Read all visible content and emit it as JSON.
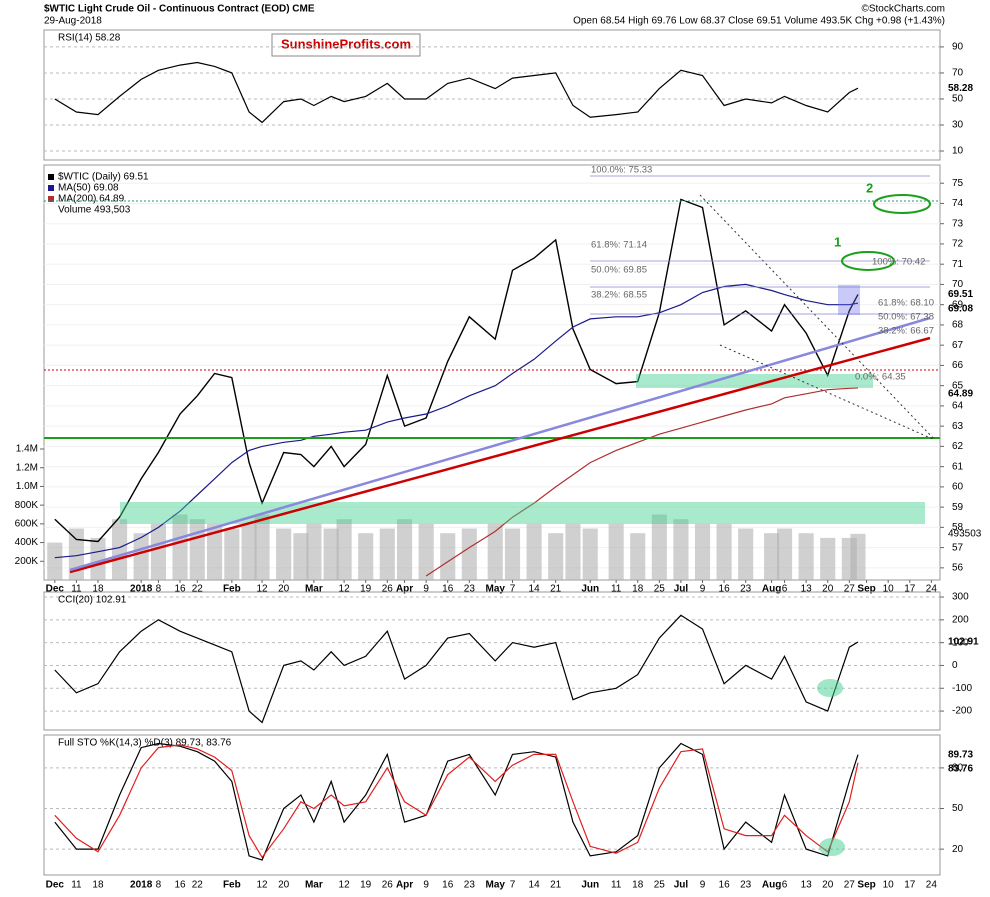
{
  "header": {
    "title": "$WTIC Light Crude Oil - Continuous Contract (EOD) CME",
    "date": "29-Aug-2018",
    "quote": "Open 68.54 High 69.76 Low 68.37 Close 69.51 Volume 493.5K Chg +0.98 (+1.43%)",
    "credit": "©StockCharts.com",
    "brand": "SunshineProfits.com"
  },
  "annotations": [
    "100.0%: 75.33",
    "61.8%: 71.14",
    "50.0%: 69.85",
    "38.2%: 68.55",
    "61.8%: 68.10",
    "50.0%: 67.38",
    "38.2%: 66.67",
    "100%: 70.42",
    "0.0%: 64.35",
    "2",
    "1"
  ],
  "chart_data": [
    {
      "type": "line",
      "title": "RSI(14) 58.28",
      "xlim": [
        -2.5,
        205
      ],
      "ylim": [
        3.1,
        103
      ],
      "yticks": [
        10,
        30,
        50,
        70,
        90
      ],
      "x": [
        0,
        5,
        10,
        15,
        20,
        24,
        29,
        33,
        37,
        41,
        45,
        48,
        53,
        57,
        60,
        64,
        67,
        72,
        77,
        81,
        86,
        91,
        96,
        102,
        106,
        111,
        116,
        120,
        124,
        130,
        135,
        140,
        145,
        150,
        155,
        160,
        166,
        169,
        174,
        179,
        184,
        186
      ],
      "series": [
        {
          "color": "#000000",
          "values": [
            50,
            40,
            38,
            52,
            65,
            72,
            76,
            78,
            75,
            70,
            40,
            32,
            48,
            50,
            45,
            52,
            48,
            52,
            62,
            50,
            50,
            62,
            66,
            58,
            66,
            68,
            70,
            45,
            36,
            38,
            40,
            58,
            72,
            68,
            45,
            50,
            47,
            52,
            45,
            40,
            55,
            58.28
          ]
        }
      ]
    },
    {
      "type": "line",
      "xlim": [
        -2.5,
        205
      ],
      "ylim": [
        55.4,
        75.9
      ],
      "yticks": [
        56,
        57,
        58,
        59,
        60,
        61,
        62,
        63,
        64,
        65,
        66,
        67,
        68,
        69,
        70,
        71,
        72,
        73,
        74,
        75
      ],
      "xticks": [
        {
          "value": 0,
          "label": "Dec"
        },
        {
          "value": 5,
          "label": "11"
        },
        {
          "value": 10,
          "label": "18"
        },
        {
          "value": 20,
          "label": "2018"
        },
        {
          "value": 24,
          "label": "8"
        },
        {
          "value": 29,
          "label": "16"
        },
        {
          "value": 33,
          "label": "22"
        },
        {
          "value": 41,
          "label": "Feb"
        },
        {
          "value": 48,
          "label": "12"
        },
        {
          "value": 53,
          "label": "20"
        },
        {
          "value": 60,
          "label": "Mar"
        },
        {
          "value": 67,
          "label": "12"
        },
        {
          "value": 72,
          "label": "19"
        },
        {
          "value": 77,
          "label": "26"
        },
        {
          "value": 81,
          "label": "Apr"
        },
        {
          "value": 86,
          "label": "9"
        },
        {
          "value": 91,
          "label": "16"
        },
        {
          "value": 96,
          "label": "23"
        },
        {
          "value": 102,
          "label": "May"
        },
        {
          "value": 106,
          "label": "7"
        },
        {
          "value": 111,
          "label": "14"
        },
        {
          "value": 116,
          "label": "21"
        },
        {
          "value": 124,
          "label": "Jun"
        },
        {
          "value": 130,
          "label": "11"
        },
        {
          "value": 135,
          "label": "18"
        },
        {
          "value": 140,
          "label": "25"
        },
        {
          "value": 145,
          "label": "Jul"
        },
        {
          "value": 150,
          "label": "9"
        },
        {
          "value": 155,
          "label": "16"
        },
        {
          "value": 160,
          "label": "23"
        },
        {
          "value": 166,
          "label": "Aug"
        },
        {
          "value": 169,
          "label": "6"
        },
        {
          "value": 174,
          "label": "13"
        },
        {
          "value": 179,
          "label": "20"
        },
        {
          "value": 184,
          "label": "27"
        },
        {
          "value": 188,
          "label": "Sep"
        },
        {
          "value": 193,
          "label": "10"
        },
        {
          "value": 198,
          "label": "17"
        },
        {
          "value": 203,
          "label": "24"
        }
      ],
      "x": [
        0,
        5,
        10,
        15,
        20,
        24,
        29,
        33,
        37,
        41,
        45,
        48,
        53,
        57,
        60,
        64,
        67,
        72,
        77,
        81,
        86,
        91,
        96,
        102,
        106,
        111,
        116,
        120,
        124,
        130,
        135,
        140,
        145,
        150,
        155,
        160,
        166,
        169,
        174,
        179,
        184,
        186
      ],
      "series": [
        {
          "name": "$WTIC (Daily) 69.51",
          "color": "#000000",
          "values": [
            58.4,
            57.4,
            57.3,
            58.5,
            60.4,
            61.7,
            63.6,
            64.5,
            65.6,
            65.4,
            61.2,
            59.2,
            61.7,
            61.6,
            61.0,
            62.0,
            61.0,
            62.1,
            65.5,
            63.0,
            63.4,
            66.2,
            68.4,
            67.3,
            70.7,
            71.3,
            72.2,
            67.8,
            65.8,
            65.1,
            65.2,
            68.6,
            74.2,
            73.8,
            68.0,
            68.7,
            67.7,
            69.0,
            67.6,
            65.5,
            68.7,
            69.51
          ]
        },
        {
          "name": "MA(50) 69.08",
          "color": "#1a1a8c",
          "values": [
            56.5,
            56.6,
            56.8,
            57.0,
            57.5,
            58.0,
            58.8,
            59.6,
            60.4,
            61.2,
            61.8,
            62.0,
            62.2,
            62.3,
            62.5,
            62.6,
            62.7,
            62.8,
            63.2,
            63.4,
            63.6,
            64.0,
            64.5,
            65.0,
            65.6,
            66.3,
            67.2,
            67.9,
            68.3,
            68.4,
            68.4,
            68.6,
            69.0,
            69.6,
            69.9,
            70.0,
            69.7,
            69.5,
            69.2,
            69.0,
            69.0,
            69.08
          ]
        },
        {
          "name": "MA(200) 64.89",
          "color": "#b03030",
          "values": [
            null,
            null,
            null,
            null,
            null,
            null,
            null,
            null,
            null,
            null,
            null,
            null,
            null,
            null,
            null,
            null,
            null,
            null,
            null,
            null,
            55.6,
            56.3,
            57.0,
            57.8,
            58.5,
            59.2,
            60.0,
            60.6,
            61.2,
            61.8,
            62.2,
            62.6,
            62.9,
            63.2,
            63.5,
            63.8,
            64.1,
            64.4,
            64.6,
            64.8,
            64.87,
            64.89
          ]
        }
      ],
      "volume": {
        "name": "Volume 493,503",
        "color": "#b0b0b0",
        "vlim": [
          0,
          1400000
        ],
        "vticks": [
          {
            "value": 200000,
            "label": "200K"
          },
          {
            "value": 400000,
            "label": "400K"
          },
          {
            "value": 600000,
            "label": "600K"
          },
          {
            "value": 800000,
            "label": "800K"
          },
          {
            "value": 1000000,
            "label": "1.0M"
          },
          {
            "value": 1200000,
            "label": "1.2M"
          },
          {
            "value": 1400000,
            "label": "1.4M"
          }
        ],
        "values": [
          400000,
          550000,
          450000,
          650000,
          500000,
          600000,
          700000,
          650000,
          600000,
          550000,
          600000,
          700000,
          550000,
          500000,
          600000,
          550000,
          650000,
          500000,
          550000,
          650000,
          600000,
          500000,
          550000,
          600000,
          550000,
          600000,
          500000,
          600000,
          550000,
          600000,
          500000,
          700000,
          650000,
          600000,
          600000,
          550000,
          500000,
          550000,
          500000,
          450000,
          450000,
          493503
        ]
      }
    },
    {
      "type": "line",
      "title": "CCI(20) 102.91",
      "xlim": [
        -2.5,
        205
      ],
      "ylim": [
        -283,
        322
      ],
      "yticks": [
        -200,
        -100,
        0,
        100,
        200,
        300
      ],
      "x": [
        0,
        5,
        10,
        15,
        20,
        24,
        29,
        33,
        37,
        41,
        45,
        48,
        53,
        57,
        60,
        64,
        67,
        72,
        77,
        81,
        86,
        91,
        96,
        102,
        106,
        111,
        116,
        120,
        124,
        130,
        135,
        140,
        145,
        150,
        155,
        160,
        166,
        169,
        174,
        179,
        184,
        186
      ],
      "series": [
        {
          "color": "#000000",
          "values": [
            -20,
            -120,
            -80,
            60,
            150,
            200,
            150,
            120,
            90,
            60,
            -200,
            -250,
            0,
            20,
            -20,
            60,
            0,
            40,
            150,
            -60,
            0,
            120,
            140,
            20,
            100,
            80,
            100,
            -150,
            -120,
            -100,
            -40,
            120,
            220,
            160,
            -80,
            0,
            -60,
            40,
            -160,
            -200,
            80,
            102.91
          ]
        }
      ]
    },
    {
      "type": "line",
      "title": "Full STO %K(14,3) %D(3) 89.73, 83.76",
      "xlim": [
        -2.5,
        205
      ],
      "ylim": [
        0.9,
        104.3
      ],
      "yticks": [
        20,
        50,
        80
      ],
      "x": [
        0,
        5,
        10,
        15,
        20,
        24,
        29,
        33,
        37,
        41,
        45,
        48,
        53,
        57,
        60,
        64,
        67,
        72,
        77,
        81,
        86,
        91,
        96,
        102,
        106,
        111,
        116,
        120,
        124,
        130,
        135,
        140,
        145,
        150,
        155,
        160,
        166,
        169,
        174,
        179,
        184,
        186
      ],
      "series": [
        {
          "color": "#000000",
          "values": [
            40,
            20,
            20,
            60,
            95,
            98,
            96,
            92,
            85,
            70,
            15,
            12,
            50,
            60,
            40,
            70,
            40,
            60,
            90,
            40,
            45,
            85,
            90,
            60,
            90,
            92,
            88,
            40,
            15,
            18,
            30,
            80,
            98,
            90,
            20,
            40,
            25,
            60,
            20,
            15,
            70,
            89.73
          ]
        },
        {
          "color": "#e02020",
          "values": [
            45,
            28,
            18,
            45,
            80,
            95,
            97,
            94,
            88,
            78,
            30,
            14,
            35,
            55,
            50,
            60,
            52,
            55,
            80,
            55,
            45,
            75,
            88,
            70,
            82,
            90,
            90,
            55,
            22,
            17,
            25,
            65,
            92,
            94,
            35,
            30,
            30,
            45,
            30,
            18,
            55,
            83.76
          ]
        }
      ]
    }
  ]
}
